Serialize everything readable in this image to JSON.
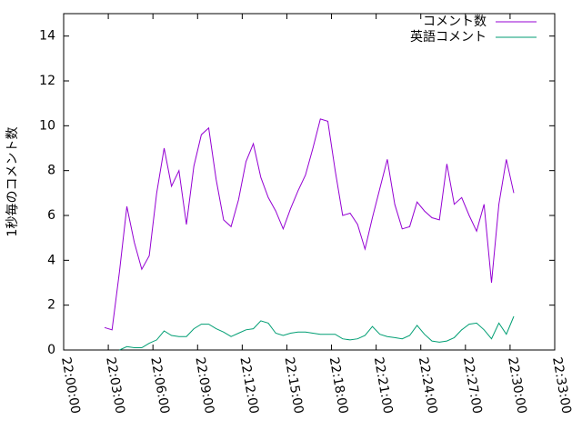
{
  "chart_data": {
    "type": "line",
    "y_label": "1秒毎のコメント数",
    "x": [
      "22:02:45",
      "22:03:15",
      "22:03:45",
      "22:04:15",
      "22:04:45",
      "22:05:15",
      "22:05:45",
      "22:06:15",
      "22:06:45",
      "22:07:15",
      "22:07:45",
      "22:08:15",
      "22:08:45",
      "22:09:15",
      "22:09:45",
      "22:10:15",
      "22:10:45",
      "22:11:15",
      "22:11:45",
      "22:12:15",
      "22:12:45",
      "22:13:15",
      "22:13:45",
      "22:14:15",
      "22:14:45",
      "22:15:15",
      "22:15:45",
      "22:16:15",
      "22:16:45",
      "22:17:15",
      "22:17:45",
      "22:18:15",
      "22:18:45",
      "22:19:15",
      "22:19:45",
      "22:20:15",
      "22:20:45",
      "22:21:15",
      "22:21:45",
      "22:22:15",
      "22:22:45",
      "22:23:15",
      "22:23:45",
      "22:24:15",
      "22:24:45",
      "22:25:15",
      "22:25:45",
      "22:26:15",
      "22:26:45",
      "22:27:15",
      "22:27:45",
      "22:28:15",
      "22:28:45",
      "22:29:15",
      "22:29:45",
      "22:30:15"
    ],
    "series": [
      {
        "name": "コメント数",
        "color": "#9400d3",
        "values": [
          1.0,
          0.9,
          3.5,
          6.4,
          4.8,
          3.6,
          4.2,
          7.0,
          9.0,
          7.3,
          8.0,
          5.6,
          8.2,
          9.6,
          9.9,
          7.6,
          5.8,
          5.5,
          6.7,
          8.4,
          9.2,
          7.7,
          6.8,
          6.2,
          5.4,
          6.3,
          7.1,
          7.8,
          9.0,
          10.3,
          10.2,
          8.0,
          6.0,
          6.1,
          5.6,
          4.5,
          5.9,
          7.2,
          8.5,
          6.5,
          5.4,
          5.5,
          6.6,
          6.2,
          5.9,
          5.8,
          8.3,
          6.5,
          6.8,
          6.0,
          5.3,
          6.5,
          3.0,
          6.5,
          8.5,
          7.0
        ]
      },
      {
        "name": "英語コメント",
        "color": "#009e73",
        "values": [
          null,
          null,
          0.0,
          0.15,
          0.1,
          0.1,
          0.3,
          0.45,
          0.85,
          0.65,
          0.6,
          0.6,
          0.95,
          1.15,
          1.15,
          0.95,
          0.8,
          0.6,
          0.75,
          0.9,
          0.95,
          1.3,
          1.2,
          0.75,
          0.65,
          0.75,
          0.8,
          0.8,
          0.75,
          0.7,
          0.7,
          0.7,
          0.5,
          0.45,
          0.5,
          0.65,
          1.05,
          0.7,
          0.6,
          0.55,
          0.5,
          0.65,
          1.1,
          0.7,
          0.4,
          0.35,
          0.4,
          0.55,
          0.9,
          1.15,
          1.2,
          0.9,
          0.5,
          1.2,
          0.7,
          1.5
        ]
      }
    ],
    "xlim": [
      "22:00:00",
      "22:33:00"
    ],
    "xticks": [
      "22:00:00",
      "22:03:00",
      "22:06:00",
      "22:09:00",
      "22:12:00",
      "22:15:00",
      "22:18:00",
      "22:21:00",
      "22:24:00",
      "22:27:00",
      "22:30:00",
      "22:33:00"
    ],
    "ylim": [
      0,
      15
    ],
    "yticks": [
      0,
      2,
      4,
      6,
      8,
      10,
      12,
      14
    ],
    "legend": "top-right"
  }
}
